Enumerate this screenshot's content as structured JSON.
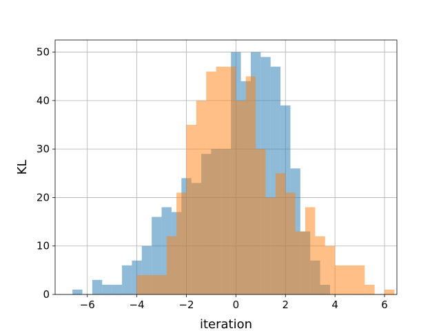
{
  "chart_data": {
    "type": "histogram",
    "xlabel": "iteration",
    "ylabel": "KL",
    "xlim": [
      -7.3,
      6.5
    ],
    "ylim": [
      0,
      52.5
    ],
    "grid": true,
    "x_ticks": [
      -6,
      -4,
      -2,
      0,
      2,
      4,
      6
    ],
    "x_tick_labels": [
      "−6",
      "−4",
      "−2",
      "0",
      "2",
      "4",
      "6"
    ],
    "y_ticks": [
      0,
      10,
      20,
      30,
      40,
      50
    ],
    "y_tick_labels": [
      "0",
      "10",
      "20",
      "30",
      "40",
      "50"
    ],
    "series": [
      {
        "color": "#1f77b4",
        "alpha": 0.5,
        "bin_start": -6.6,
        "bin_width": 0.4,
        "counts": [
          1,
          0,
          3,
          2,
          2,
          6,
          7,
          10,
          16,
          18,
          17,
          24,
          23,
          29,
          30,
          30,
          50,
          44,
          50,
          49,
          47,
          39,
          26,
          13,
          7,
          2
        ]
      },
      {
        "color": "#ff7f0e",
        "alpha": 0.5,
        "bin_start": -4.0,
        "bin_width": 0.4,
        "counts": [
          4,
          4,
          4,
          12,
          21,
          35,
          40,
          46,
          47,
          47,
          40,
          45,
          30,
          20,
          25,
          21,
          13,
          18,
          12,
          10,
          6,
          6,
          6,
          2,
          0,
          1
        ]
      }
    ]
  }
}
